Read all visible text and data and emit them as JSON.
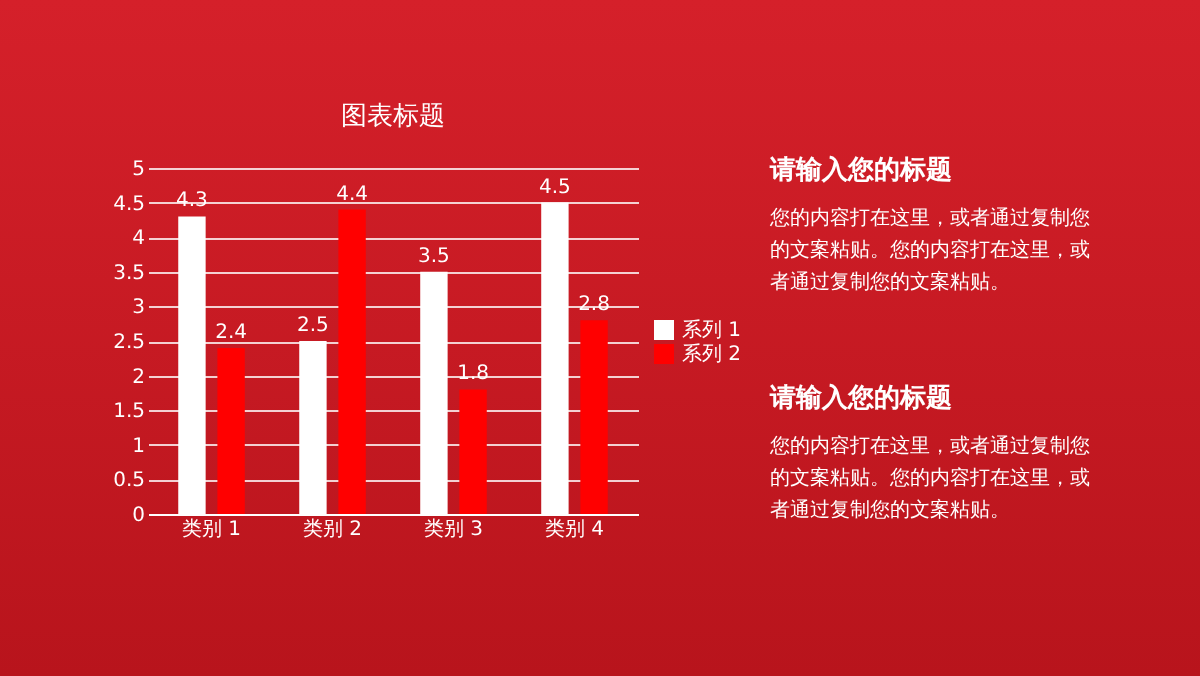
{
  "chart_data": [
    {
      "type": "bar",
      "title": "图表标题",
      "categories": [
        "类别 1",
        "类别 2",
        "类别 3",
        "类别 4"
      ],
      "series": [
        {
          "name": "系列 1",
          "color": "#ffffff",
          "values": [
            4.3,
            2.5,
            3.5,
            4.5
          ]
        },
        {
          "name": "系列 2",
          "color": "#ff0000",
          "values": [
            2.4,
            4.4,
            1.8,
            2.8
          ]
        }
      ],
      "ylim": [
        0,
        5
      ],
      "yticks": [
        0,
        0.5,
        1,
        1.5,
        2,
        2.5,
        3,
        3.5,
        4,
        4.5,
        5
      ],
      "grid": "y",
      "legend": "right",
      "data_labels": true
    },
    {
      "type": "other",
      "annotations": [
        "请输入您的标题",
        "您的内容打在这里，或者通过复制您的文案粘贴。您的内容打在这里，或者通过复制您的文案粘贴。",
        "请输入您的标题",
        "您的内容打在这里，或者通过复制您的文案粘贴。您的内容打在这里，或者通过复制您的文案粘贴。"
      ]
    }
  ]
}
